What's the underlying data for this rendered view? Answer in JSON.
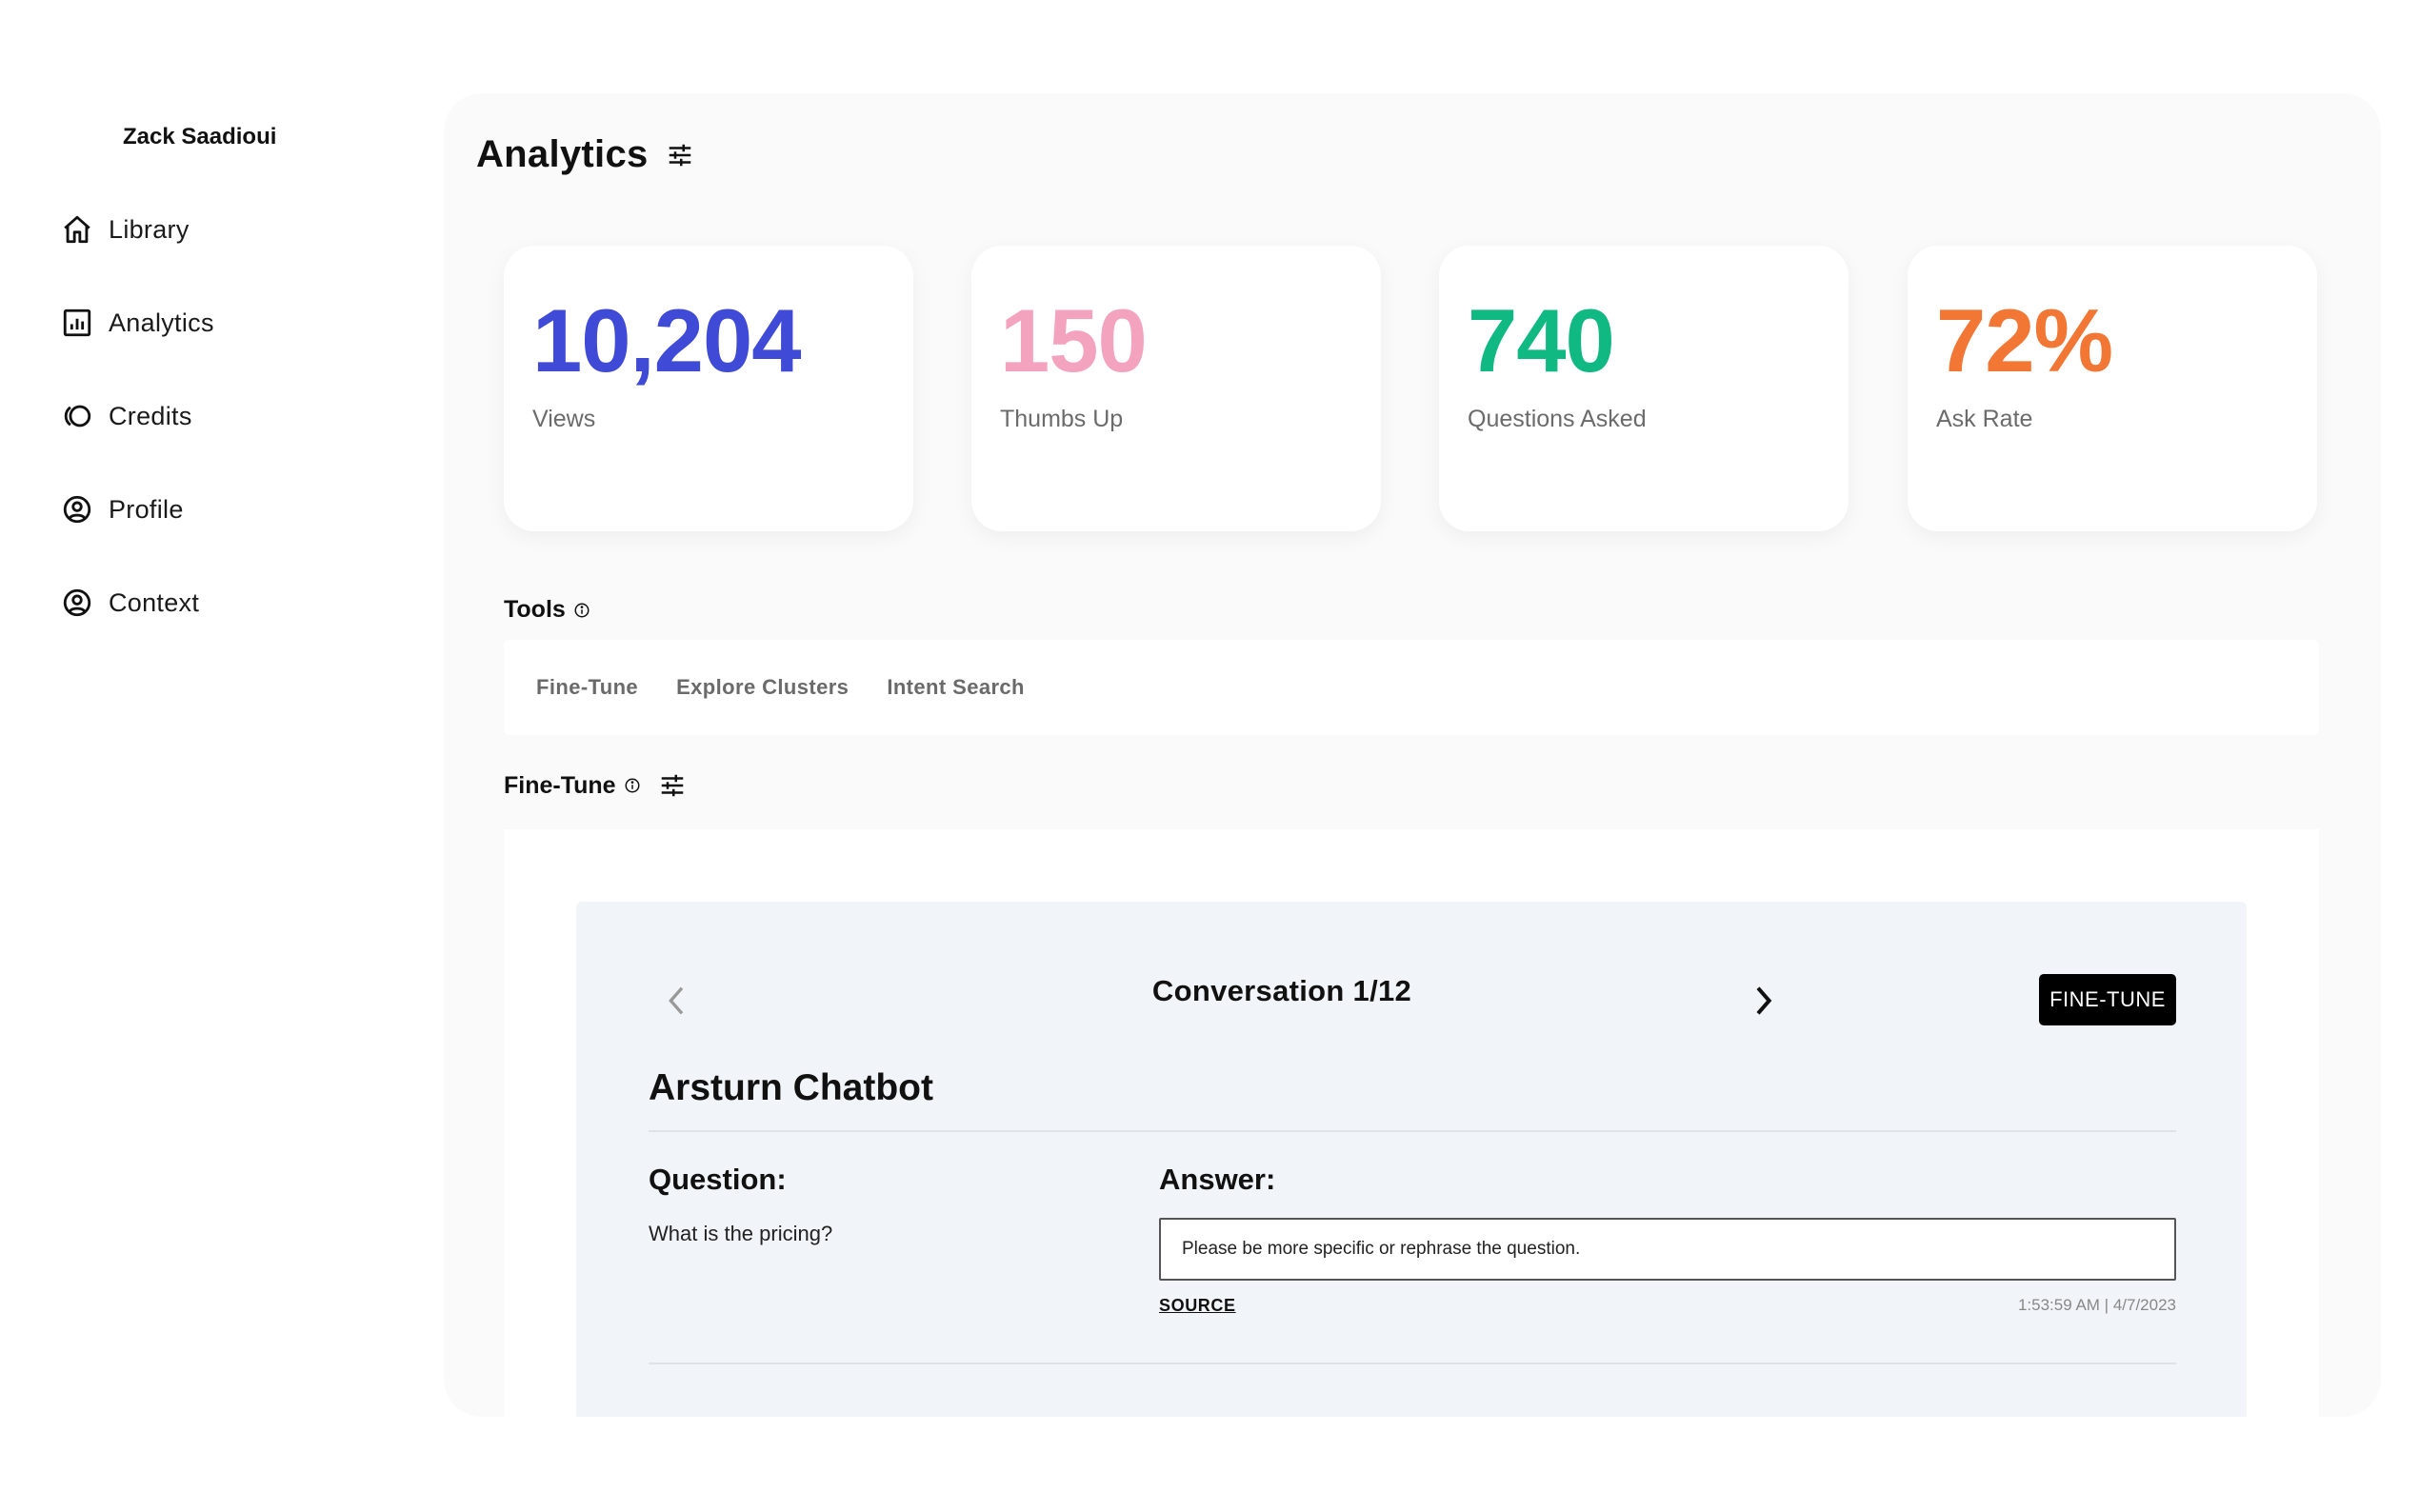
{
  "sidebar": {
    "user_name": "Zack Saadioui",
    "items": [
      {
        "label": "Library",
        "icon": "home-icon"
      },
      {
        "label": "Analytics",
        "icon": "chart-icon"
      },
      {
        "label": "Credits",
        "icon": "credits-icon"
      },
      {
        "label": "Profile",
        "icon": "profile-icon"
      },
      {
        "label": "Context",
        "icon": "context-icon"
      }
    ]
  },
  "header": {
    "title": "Analytics",
    "icon": "sliders-icon"
  },
  "stats": [
    {
      "value": "10,204",
      "label": "Views",
      "color": "#3f4ad6"
    },
    {
      "value": "150",
      "label": "Thumbs Up",
      "color": "#f4a3bf"
    },
    {
      "value": "740",
      "label": "Questions Asked",
      "color": "#10b981"
    },
    {
      "value": "72%",
      "label": "Ask Rate",
      "color": "#f27634"
    }
  ],
  "tools": {
    "title": "Tools",
    "tabs": [
      "Fine-Tune",
      "Explore Clusters",
      "Intent Search"
    ]
  },
  "fine_tune": {
    "title": "Fine-Tune",
    "conversation_label": "Conversation 1/12",
    "button_label": "FINE-TUNE",
    "bot_name": "Arsturn Chatbot",
    "question_label": "Question:",
    "question_text": "What is the pricing?",
    "answer_label": "Answer:",
    "answer_text": "Please be more specific or rephrase the question.",
    "source_label": "SOURCE",
    "timestamp": "1:53:59 AM | 4/7/2023"
  }
}
